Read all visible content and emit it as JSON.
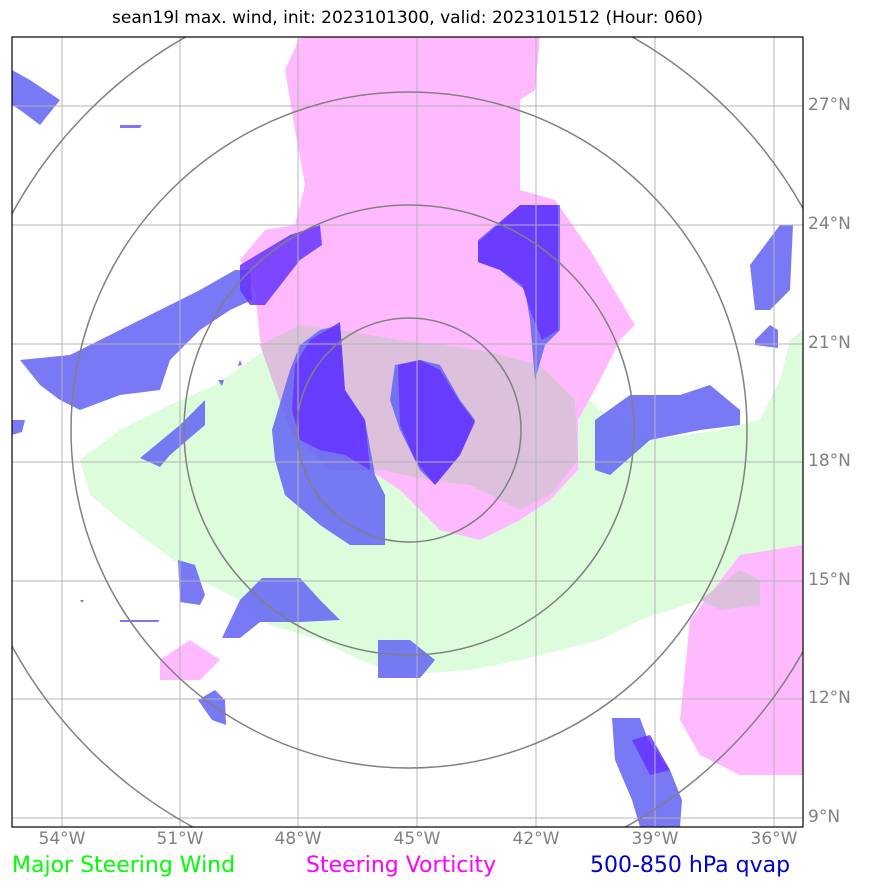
{
  "title": "sean19l max. wind, init: 2023101300, valid: 2023101512 (Hour: 060)",
  "lat_labels": [
    "27°N",
    "24°N",
    "21°N",
    "18°N",
    "15°N",
    "12°N",
    "9°N"
  ],
  "lon_labels": [
    "54°W",
    "51°W",
    "48°W",
    "45°W",
    "42°W",
    "39°W",
    "36°W"
  ],
  "legend": [
    {
      "label": "Major Steering Wind",
      "color": "#00ff00"
    },
    {
      "label": "Steering Vorticity",
      "color": "#ff00ff"
    },
    {
      "label": "500-850 hPa qvap",
      "color": "#0000cc"
    }
  ],
  "colors": {
    "wind_fill": "#dcfcdc",
    "vorticity_fill": "#ffbaff",
    "qvap_fill": "#6666f5",
    "qvap_dark": "#6633ff",
    "grid": "#b4b4b4",
    "rings": "#808080"
  }
}
